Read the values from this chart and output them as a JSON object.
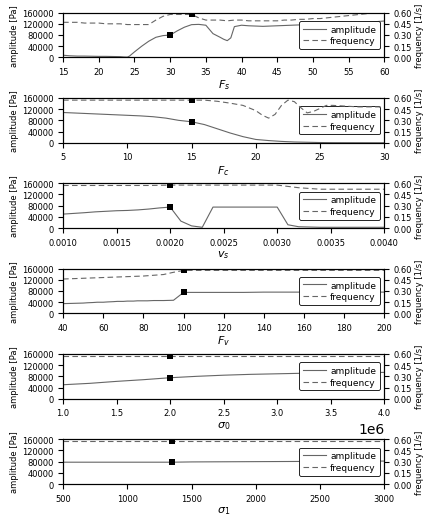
{
  "subplots": [
    {
      "xlabel": "$F_s$",
      "xlim": [
        15,
        60
      ],
      "xticks": [
        15,
        20,
        25,
        30,
        35,
        40,
        45,
        50,
        55,
        60
      ],
      "ref_x_amp": 30,
      "ref_y_amp": 80000,
      "ref_x_freq": 33,
      "ref_y_freq": 0.575,
      "amp_x": [
        15,
        15.5,
        16,
        17,
        18,
        19,
        20,
        21,
        22,
        23,
        23.5,
        24,
        24.3,
        25,
        26,
        27,
        28,
        29,
        30,
        31,
        32,
        33,
        34,
        35,
        36,
        37,
        37.5,
        38,
        38.5,
        39,
        40,
        41,
        42,
        43,
        44,
        45,
        46,
        47,
        48,
        49,
        50,
        51,
        52,
        53,
        54,
        55,
        56,
        57,
        58,
        59,
        60
      ],
      "amp_y": [
        8000,
        7000,
        6000,
        5000,
        5000,
        4500,
        4000,
        4000,
        3500,
        3000,
        2000,
        1500,
        5000,
        20000,
        40000,
        58000,
        72000,
        78000,
        80000,
        95000,
        108000,
        117000,
        118000,
        115000,
        85000,
        72000,
        65000,
        60000,
        70000,
        110000,
        115000,
        113000,
        112000,
        111000,
        112000,
        113000,
        114000,
        115000,
        116000,
        117000,
        118000,
        119000,
        120000,
        121000,
        122000,
        123000,
        125000,
        126000,
        127000,
        128000,
        130000
      ],
      "freq_x": [
        15,
        16,
        17,
        18,
        19,
        20,
        21,
        22,
        23,
        24,
        25,
        26,
        27,
        28,
        29,
        30,
        31,
        32,
        33,
        34,
        35,
        36,
        37,
        38,
        39,
        40,
        41,
        42,
        43,
        44,
        45,
        46,
        47,
        48,
        49,
        50,
        51,
        52,
        53,
        54,
        55,
        56,
        57,
        58,
        59,
        60
      ],
      "freq_y": [
        0.47,
        0.47,
        0.47,
        0.46,
        0.46,
        0.46,
        0.45,
        0.45,
        0.45,
        0.44,
        0.44,
        0.44,
        0.44,
        0.5,
        0.55,
        0.575,
        0.575,
        0.575,
        0.575,
        0.53,
        0.5,
        0.5,
        0.5,
        0.49,
        0.5,
        0.5,
        0.49,
        0.49,
        0.49,
        0.49,
        0.49,
        0.5,
        0.5,
        0.51,
        0.51,
        0.52,
        0.52,
        0.53,
        0.54,
        0.55,
        0.56,
        0.57,
        0.58,
        0.59,
        0.6,
        0.6
      ]
    },
    {
      "xlabel": "$F_c$",
      "xlim": [
        5,
        30
      ],
      "xticks": [
        5,
        10,
        15,
        20,
        25,
        30
      ],
      "ref_x_amp": 15,
      "ref_y_amp": 75000,
      "ref_x_freq": 15,
      "ref_y_freq": 0.575,
      "amp_x": [
        5,
        6,
        7,
        8,
        9,
        10,
        11,
        12,
        13,
        14,
        15,
        16,
        17,
        18,
        19,
        20,
        21,
        22,
        23,
        24,
        25,
        26,
        27,
        28,
        29,
        30
      ],
      "amp_y": [
        108000,
        106000,
        104000,
        102000,
        100000,
        98000,
        96000,
        93000,
        88000,
        80000,
        75000,
        65000,
        50000,
        35000,
        22000,
        12000,
        8000,
        5000,
        3000,
        2000,
        1000,
        500,
        400,
        300,
        200,
        100
      ],
      "freq_x": [
        5,
        6,
        7,
        8,
        9,
        10,
        11,
        12,
        13,
        14,
        15,
        16,
        17,
        18,
        19,
        20,
        20.5,
        21,
        21.5,
        22,
        22.5,
        23,
        23.5,
        24,
        24.5,
        25,
        25.5,
        26,
        27,
        28,
        29,
        30
      ],
      "freq_y": [
        0.57,
        0.57,
        0.57,
        0.57,
        0.57,
        0.57,
        0.57,
        0.57,
        0.57,
        0.57,
        0.57,
        0.57,
        0.555,
        0.53,
        0.5,
        0.43,
        0.37,
        0.33,
        0.38,
        0.5,
        0.57,
        0.55,
        0.47,
        0.4,
        0.42,
        0.46,
        0.5,
        0.5,
        0.49,
        0.48,
        0.48,
        0.48
      ]
    },
    {
      "xlabel": "$v_s$",
      "xlim": [
        0.001,
        0.004
      ],
      "xticks": [
        0.001,
        0.0015,
        0.002,
        0.0025,
        0.003,
        0.0035,
        0.004
      ],
      "ref_x_amp": 0.002,
      "ref_y_amp": 75000,
      "ref_x_freq": 0.002,
      "ref_y_freq": 0.575,
      "amp_x": [
        0.001,
        0.0012,
        0.0013,
        0.0014,
        0.0015,
        0.0016,
        0.0017,
        0.0018,
        0.0019,
        0.002,
        0.0021,
        0.0022,
        0.0023,
        0.0024,
        0.0025,
        0.0026,
        0.0027,
        0.0028,
        0.003,
        0.0031,
        0.0032,
        0.0033,
        0.0034,
        0.0035,
        0.0036,
        0.004
      ],
      "amp_y": [
        50000,
        55000,
        58000,
        60000,
        62000,
        63000,
        65000,
        68000,
        72000,
        75000,
        25000,
        8000,
        3000,
        75000,
        75000,
        75000,
        75000,
        75000,
        75000,
        12000,
        5000,
        4000,
        3000,
        3000,
        3000,
        3000
      ],
      "freq_x": [
        0.001,
        0.0012,
        0.0014,
        0.0016,
        0.0018,
        0.002,
        0.0022,
        0.0024,
        0.0026,
        0.0028,
        0.003,
        0.0032,
        0.0034,
        0.0036,
        0.0038,
        0.004
      ],
      "freq_y": [
        0.57,
        0.57,
        0.57,
        0.57,
        0.57,
        0.575,
        0.575,
        0.575,
        0.575,
        0.575,
        0.575,
        0.54,
        0.52,
        0.52,
        0.52,
        0.52
      ]
    },
    {
      "xlabel": "$F_v$",
      "xlim": [
        40,
        200
      ],
      "xticks": [
        40,
        60,
        80,
        100,
        120,
        140,
        160,
        180,
        200
      ],
      "ref_x_amp": 100,
      "ref_y_amp": 75000,
      "ref_x_freq": 100,
      "ref_y_freq": 0.575,
      "amp_x": [
        40,
        45,
        50,
        52,
        55,
        57,
        60,
        62,
        65,
        67,
        70,
        72,
        75,
        77,
        80,
        82,
        85,
        87,
        90,
        95,
        100,
        105,
        110,
        120,
        130,
        140,
        150,
        160,
        170,
        180,
        190,
        200
      ],
      "amp_y": [
        35000,
        36000,
        37000,
        38000,
        39000,
        40000,
        40000,
        41000,
        42000,
        43000,
        43000,
        44000,
        44000,
        45000,
        45000,
        45000,
        46000,
        46000,
        46000,
        47000,
        75000,
        75000,
        75000,
        75000,
        75000,
        76000,
        76000,
        76000,
        76000,
        76000,
        76000,
        76000
      ],
      "freq_x": [
        40,
        50,
        60,
        70,
        80,
        90,
        95,
        100,
        110,
        120,
        130,
        140,
        150,
        160,
        170,
        180,
        190,
        200
      ],
      "freq_y": [
        0.46,
        0.47,
        0.48,
        0.49,
        0.5,
        0.52,
        0.55,
        0.575,
        0.575,
        0.575,
        0.575,
        0.575,
        0.575,
        0.575,
        0.575,
        0.575,
        0.575,
        0.575
      ]
    },
    {
      "xlabel": "$\\sigma_0$",
      "xlim": [
        1000000,
        4000000
      ],
      "xticks": [
        1000000,
        1500000,
        2000000,
        2500000,
        3000000,
        3500000,
        4000000
      ],
      "ref_x_amp": 2000000,
      "ref_y_amp": 75000,
      "ref_x_freq": 2000000,
      "ref_y_freq": 0.575,
      "amp_x": [
        1000000,
        1250000,
        1500000,
        1750000,
        2000000,
        2250000,
        2500000,
        2750000,
        3000000,
        3250000,
        3500000,
        3750000,
        4000000
      ],
      "amp_y": [
        50000,
        55000,
        62000,
        68000,
        75000,
        80000,
        84000,
        87000,
        89000,
        91000,
        92000,
        93000,
        94000
      ],
      "freq_x": [
        1000000,
        1500000,
        2000000,
        2500000,
        3000000,
        3500000,
        4000000
      ],
      "freq_y": [
        0.575,
        0.575,
        0.575,
        0.575,
        0.575,
        0.575,
        0.575
      ]
    },
    {
      "xlabel": "$\\sigma_1$",
      "xlim": [
        500,
        3000
      ],
      "xticks": [
        500,
        1000,
        1500,
        2000,
        2500,
        3000
      ],
      "ref_x_amp": 1350,
      "ref_y_amp": 78000,
      "ref_x_freq": 1350,
      "ref_y_freq": 0.575,
      "amp_x": [
        500,
        750,
        1000,
        1250,
        1350,
        1500,
        1750,
        2000,
        2250,
        2500,
        2750,
        3000
      ],
      "amp_y": [
        78000,
        78000,
        78000,
        78000,
        78000,
        79000,
        79500,
        80000,
        80500,
        81000,
        81500,
        82000
      ],
      "freq_x": [
        500,
        1000,
        1500,
        2000,
        2500,
        3000
      ],
      "freq_y": [
        0.575,
        0.575,
        0.575,
        0.575,
        0.575,
        0.575
      ]
    }
  ],
  "ylim_amp": [
    0,
    160000
  ],
  "ylim_freq": [
    0.0,
    0.6
  ],
  "yticks_amp": [
    0,
    40000,
    80000,
    120000,
    160000
  ],
  "yticks_freq": [
    0.0,
    0.15,
    0.3,
    0.45,
    0.6
  ],
  "ylabel_amp": "amplitude [Pa]",
  "ylabel_freq": "frequency [1/s]",
  "amp_color": "#666666",
  "freq_color": "#666666",
  "legend_amp_label": "amplitude",
  "legend_freq_label": "frequency",
  "marker": "s",
  "marker_color": "black",
  "marker_size": 5
}
